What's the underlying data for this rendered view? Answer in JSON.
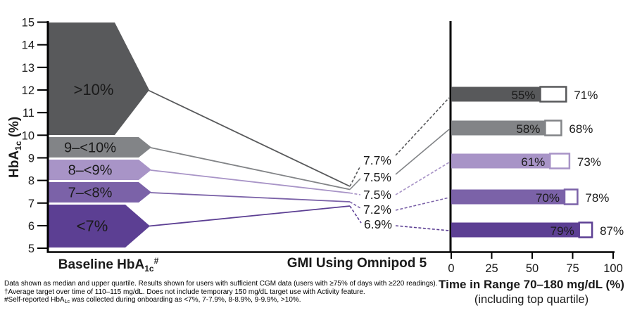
{
  "colors": {
    "dark_gray": "#58595b",
    "gray": "#828487",
    "light_purple": "#a894c7",
    "medium_purple": "#7b62a8",
    "dark_purple": "#5c3f93",
    "axis_black": "#000000"
  },
  "axes": {
    "hba1c_label_main": "HbA",
    "hba1c_label_sub": "1c",
    "hba1c_label_rest": " (%)",
    "baseline_label_main": "Baseline HbA",
    "baseline_label_sub": "1c",
    "baseline_label_sup": "#",
    "gmi_label": "GMI Using Omnipod 5",
    "tir_label_line1": "Time in Range 70–180 mg/dL (%)",
    "tir_label_line2": "(including top quartile)"
  },
  "footnotes": {
    "line1": "Data shown as median and upper quartile. Results shown for users with sufficient CGM data (users with ≥75% of days with ≥220 readings).",
    "line2": "†Average target over time of 110–115 mg/dL. Does not include temporary 150 mg/dL target use with Activity feature.",
    "line3_prefix": "#Self-reported HbA",
    "line3_sub": "1c",
    "line3_rest": " was collected during onboarding as <7%, 7-7.9%, 8-8.9%, 9-9.9%, >10%."
  },
  "chart_data": [
    {
      "type": "area",
      "name": "baseline-hba1c-to-gmi-flow",
      "ylabel": "HbA1c (%)",
      "ylim": [
        5,
        15
      ],
      "yticks": [
        15,
        14,
        13,
        12,
        11,
        10,
        9,
        8,
        7,
        6,
        5
      ],
      "xlabel": "Baseline HbA1c#",
      "categories": [
        ">10%",
        "9–<10%",
        "8–<9%",
        "7–<8%",
        "<7%"
      ],
      "baseline_hba1c_ranges": [
        [
          10,
          15
        ],
        [
          9,
          10
        ],
        [
          8,
          9
        ],
        [
          7,
          8
        ],
        [
          5,
          7
        ]
      ],
      "gmi_axis_label": "GMI Using Omnipod 5",
      "gmi_values": [
        7.7,
        7.5,
        7.5,
        7.2,
        6.9
      ],
      "gmi_value_labels": [
        "7.7%",
        "7.5%",
        "7.5%",
        "7.2%",
        "6.9%"
      ],
      "series_colors": [
        "#58595b",
        "#828487",
        "#a894c7",
        "#7b62a8",
        "#5c3f93"
      ]
    },
    {
      "type": "bar",
      "name": "time-in-range-by-baseline-group",
      "orientation": "horizontal",
      "xlabel": "Time in Range 70–180 mg/dL (%)",
      "xlabel_note": "(including top quartile)",
      "xlim": [
        0,
        100
      ],
      "xticks": [
        0,
        25,
        50,
        75,
        100
      ],
      "categories": [
        ">10%",
        "9–<10%",
        "8–<9%",
        "7–<8%",
        "<7%"
      ],
      "series": [
        {
          "name": "Median",
          "values": [
            55,
            58,
            61,
            70,
            79
          ]
        },
        {
          "name": "Upper quartile",
          "values": [
            71,
            68,
            73,
            78,
            87
          ]
        }
      ],
      "median_labels": [
        "55%",
        "58%",
        "61%",
        "70%",
        "79%"
      ],
      "upper_quartile_labels": [
        "71%",
        "68%",
        "73%",
        "78%",
        "87%"
      ]
    }
  ]
}
